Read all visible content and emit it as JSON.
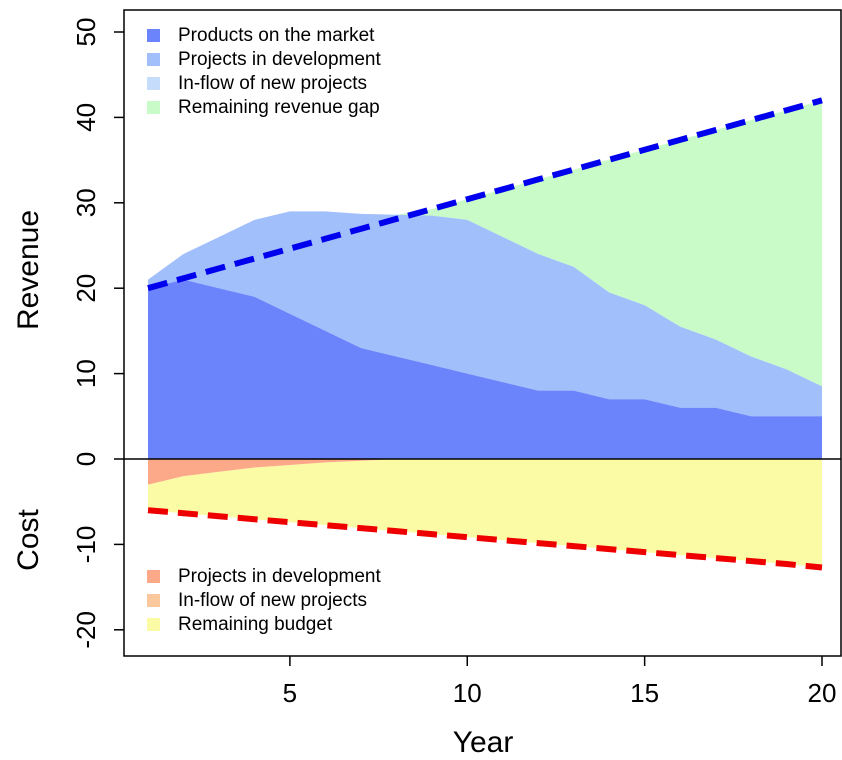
{
  "chart_data": {
    "type": "area",
    "xlabel": "Year",
    "xlim": [
      1,
      20
    ],
    "xticks": [
      5,
      10,
      15,
      20
    ],
    "ylim": [
      -22,
      52
    ],
    "yticks": [
      -20,
      -10,
      0,
      10,
      20,
      30,
      40,
      50
    ],
    "y_axis_labels": {
      "positive": "Revenue",
      "negative": "Cost"
    },
    "x": [
      1,
      2,
      3,
      4,
      5,
      6,
      7,
      8,
      9,
      10,
      11,
      12,
      13,
      14,
      15,
      16,
      17,
      18,
      19,
      20
    ],
    "revenue": {
      "products_on_market": [
        20,
        21,
        20,
        19,
        17,
        15,
        13,
        12,
        11,
        10,
        9,
        8,
        8,
        7,
        7,
        6,
        6,
        5,
        5,
        5
      ],
      "projects_in_development_top": [
        21,
        24,
        26,
        28,
        29,
        29,
        28.7,
        28.6,
        28.5,
        28,
        26,
        24,
        22.5,
        19.5,
        18,
        15.5,
        14,
        12,
        10.5,
        8.5
      ],
      "inflow_of_new_projects_top": [
        21,
        24,
        26,
        28,
        29,
        29,
        28.7,
        28.6,
        28.5,
        28,
        26,
        24,
        22.5,
        19.5,
        18,
        15.5,
        14,
        12,
        10.5,
        8.5
      ],
      "revenue_target": [
        20,
        21.16,
        22.32,
        23.47,
        24.63,
        25.79,
        26.95,
        28.11,
        29.26,
        30.42,
        31.58,
        32.74,
        33.89,
        35.05,
        36.21,
        37.37,
        38.53,
        39.68,
        40.84,
        42
      ]
    },
    "cost": {
      "projects_in_development": [
        -3,
        -2,
        -1.5,
        -1,
        -0.7,
        -0.4,
        -0.2,
        0,
        0,
        0,
        0,
        0,
        0,
        0,
        0,
        0,
        0,
        0,
        0,
        0
      ],
      "budget_limit": [
        -6,
        -6.35,
        -6.7,
        -7.05,
        -7.4,
        -7.75,
        -8.1,
        -8.45,
        -8.8,
        -9.15,
        -9.5,
        -9.85,
        -10.2,
        -10.55,
        -10.9,
        -11.25,
        -11.6,
        -11.95,
        -12.3,
        -12.7
      ]
    },
    "legend_revenue": {
      "position": "top-left",
      "entries": [
        {
          "label": "Products on the market",
          "color": "#6b84fb"
        },
        {
          "label": "Projects in development",
          "color": "#a1bffb"
        },
        {
          "label": "In-flow of new projects",
          "color": "#c5dcfb"
        },
        {
          "label": "Remaining revenue gap",
          "color": "#c8fbc8"
        }
      ]
    },
    "legend_cost": {
      "position": "bottom-left",
      "entries": [
        {
          "label": "Projects in development",
          "color": "#fba989"
        },
        {
          "label": "In-flow of new projects",
          "color": "#fbc79d"
        },
        {
          "label": "Remaining budget",
          "color": "#fbfba5"
        }
      ]
    },
    "colors": {
      "market": "#6b84fb",
      "development": "#a1bffb",
      "gap": "#c8fbc8",
      "cost_dev": "#fba989",
      "budget": "#fbfba5",
      "revenue_line": "#0000ee",
      "cost_line": "#ee0000"
    }
  }
}
